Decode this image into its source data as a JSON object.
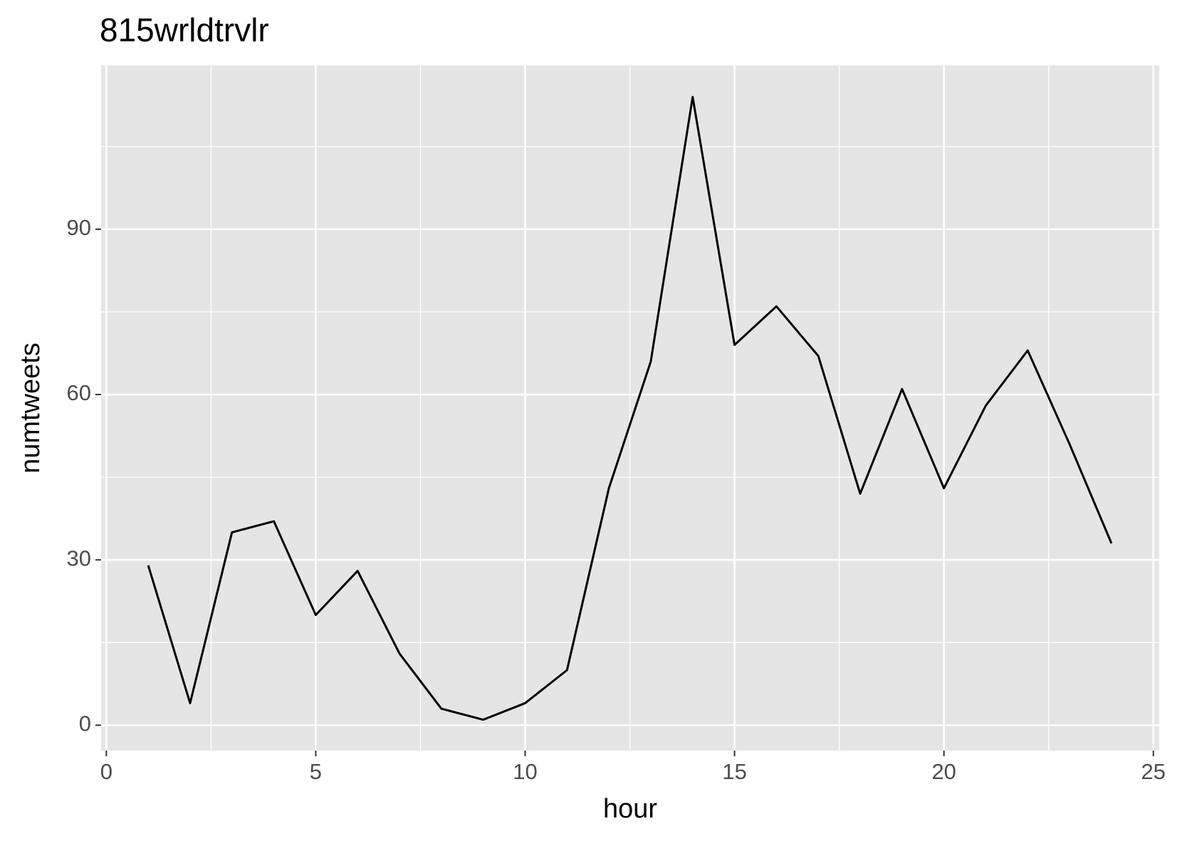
{
  "chart_data": {
    "type": "line",
    "title": "815wrldtrvlr",
    "x_label": "hour",
    "y_label": "numtweets",
    "x": [
      1,
      2,
      3,
      4,
      5,
      6,
      7,
      8,
      9,
      10,
      11,
      12,
      13,
      14,
      15,
      16,
      17,
      18,
      19,
      20,
      21,
      22,
      23,
      24
    ],
    "series": [
      {
        "color": "#000000",
        "values": [
          29,
          4,
          35,
          37,
          20,
          28,
          13,
          3,
          1,
          4,
          10,
          43,
          66,
          114,
          69,
          76,
          67,
          42,
          61,
          43,
          58,
          68,
          51,
          33
        ]
      }
    ],
    "xlim": [
      -0.125,
      25.14
    ],
    "ylim": [
      -4.6,
      119.7
    ],
    "xticks": [
      0,
      5,
      10,
      15,
      20,
      25
    ],
    "yticks": [
      0,
      30,
      60,
      90
    ],
    "grid": true
  }
}
